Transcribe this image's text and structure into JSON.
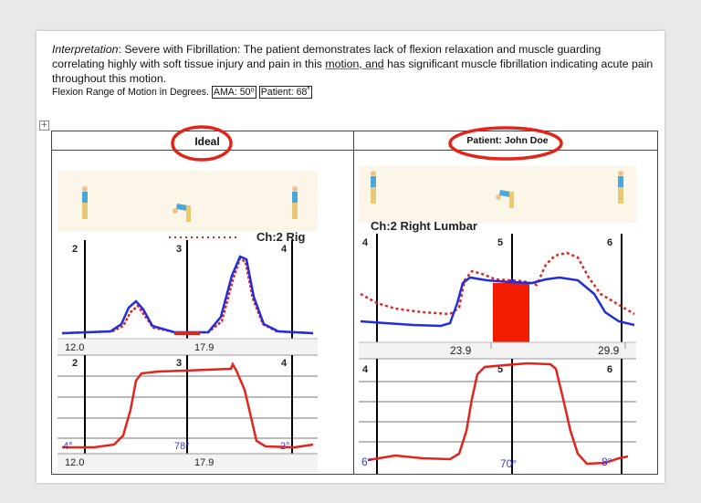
{
  "interpretation": {
    "label": "Interpretation",
    "sep": ": ",
    "text_before_link": "Severe with Fibrillation: The patient demonstrates lack of flexion relaxation and muscle guarding correlating highly with soft tissue injury and pain in this ",
    "link": "motion, and",
    "text_after_link": " has significant muscle fibrillation indicating acute pain throughout this motion."
  },
  "rom": {
    "text": "Flexion Range of Motion in Degrees.",
    "ama": "AMA: 50⁰",
    "patient": "Patient: 68˚"
  },
  "table": {
    "handle_icon": "move-handle-icon",
    "ideal_header": "Ideal",
    "patient_header": "Patient: John Doe",
    "annotation_color": "#e3241b"
  },
  "left_chart": {
    "channel_label": "Ch:2 Rig",
    "top_markers": [
      "2",
      "3",
      "4"
    ],
    "time_labels": [
      "12.0",
      "17.9"
    ],
    "bottom_markers": [
      "2",
      "3",
      "4"
    ],
    "angles": [
      "4°",
      "78°",
      "2°"
    ],
    "bottom_time_labels": [
      "12.0",
      "17.9"
    ],
    "emg_color": "#1f2ee0",
    "ref_color": "#e3241b",
    "angle_color": "#e3241b"
  },
  "right_chart": {
    "channel_label": "Ch:2 Right Lumbar",
    "top_markers": [
      "4",
      "5",
      "6"
    ],
    "time_labels": [
      "23.9",
      "29.9"
    ],
    "bottom_markers": [
      "4",
      "5",
      "6"
    ],
    "angles": [
      "6°",
      "70°",
      "8°"
    ],
    "emg_color": "#1f2ee0",
    "ref_color": "#e3241b",
    "bar_color": "#f21c00"
  }
}
